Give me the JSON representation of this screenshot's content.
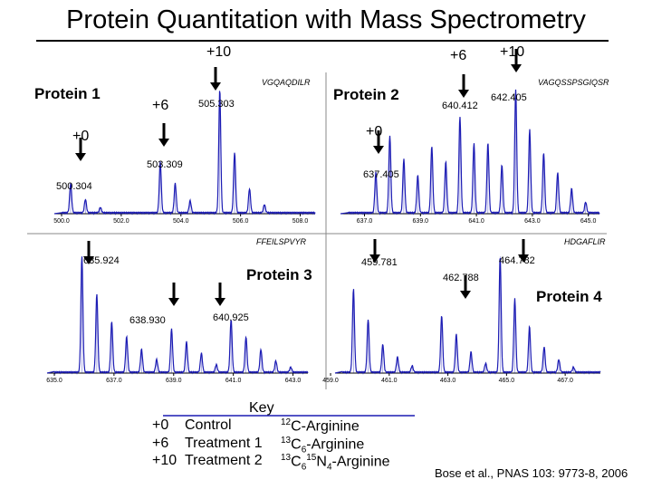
{
  "title": "Protein Quantitation with Mass Spectrometry",
  "citation": "Bose et al., PNAS 103: 9773-8, 2006",
  "colors": {
    "peak": "#1c1cb4",
    "axis": "#000000",
    "divider": "#888888"
  },
  "key": {
    "heading": "Key",
    "rows": [
      {
        "label": "+0",
        "treatment": "Control",
        "iso": "12",
        "residue": "C-Arginine"
      },
      {
        "label": "+6",
        "treatment": "Treatment 1",
        "iso": "13",
        "c": "C",
        "sub": "6",
        "residue": "-Arginine"
      },
      {
        "label": "+10",
        "treatment": "Treatment 2",
        "iso": "13",
        "c": "C",
        "sub": "6",
        "iso2": "15",
        "n": "N",
        "sub2": "4",
        "residue": "-Arginine"
      }
    ]
  },
  "chart_data": [
    {
      "type": "line",
      "protein": "Protein 1",
      "sequence": "VGQAQDILR",
      "xlim": [
        500.0,
        508.5
      ],
      "x_ticks": [
        "500.0",
        "502.0",
        "504.0",
        "506.0",
        "508.0"
      ],
      "tick_values": [
        500.0,
        502.0,
        504.0,
        506.0,
        508.0
      ],
      "peaks": [
        {
          "x": 500.304,
          "y": 0.22
        },
        {
          "x": 500.8,
          "y": 0.1
        },
        {
          "x": 501.3,
          "y": 0.04
        },
        {
          "x": 503.309,
          "y": 0.38
        },
        {
          "x": 503.81,
          "y": 0.22
        },
        {
          "x": 504.31,
          "y": 0.09
        },
        {
          "x": 505.303,
          "y": 0.92
        },
        {
          "x": 505.8,
          "y": 0.45
        },
        {
          "x": 506.3,
          "y": 0.18
        },
        {
          "x": 506.8,
          "y": 0.06
        }
      ],
      "annotations": [
        {
          "text": "500.304"
        },
        {
          "text": "503.309"
        },
        {
          "text": "505.303"
        }
      ],
      "markers": [
        {
          "text": "+0",
          "x": 500.304
        },
        {
          "text": "+6",
          "x": 503.309
        },
        {
          "text": "+10",
          "x": 505.303
        }
      ]
    },
    {
      "type": "line",
      "protein": "Protein 2",
      "sequence": "VAGQSSPSGIQSR",
      "xlim": [
        636.4,
        645.4
      ],
      "x_ticks": [
        "637.0",
        "639.0",
        "641.0",
        "643.0",
        "645.0"
      ],
      "tick_values": [
        637.0,
        639.0,
        641.0,
        643.0,
        645.0
      ],
      "peaks": [
        {
          "x": 637.405,
          "y": 0.3
        },
        {
          "x": 637.905,
          "y": 0.58
        },
        {
          "x": 638.405,
          "y": 0.4
        },
        {
          "x": 638.905,
          "y": 0.28
        },
        {
          "x": 639.405,
          "y": 0.5
        },
        {
          "x": 639.905,
          "y": 0.38
        },
        {
          "x": 640.412,
          "y": 0.72
        },
        {
          "x": 640.912,
          "y": 0.52
        },
        {
          "x": 641.412,
          "y": 0.52
        },
        {
          "x": 641.912,
          "y": 0.36
        },
        {
          "x": 642.405,
          "y": 0.92
        },
        {
          "x": 642.905,
          "y": 0.62
        },
        {
          "x": 643.405,
          "y": 0.45
        },
        {
          "x": 643.905,
          "y": 0.3
        },
        {
          "x": 644.405,
          "y": 0.18
        },
        {
          "x": 644.905,
          "y": 0.08
        }
      ],
      "annotations": [
        {
          "text": "637.405"
        },
        {
          "text": "640.412"
        },
        {
          "text": "642.405"
        }
      ],
      "markers": [
        {
          "text": "+0",
          "x": 637.405
        },
        {
          "text": "+6",
          "x": 640.412
        },
        {
          "text": "+10",
          "x": 642.405
        }
      ]
    },
    {
      "type": "line",
      "protein": "Protein 3",
      "sequence": "FFEILSPVYR",
      "xlim": [
        635.0,
        643.5
      ],
      "x_ticks": [
        "635.0",
        "637.0",
        "639.0",
        "641.0",
        "643.0"
      ],
      "tick_values": [
        635.0,
        637.0,
        639.0,
        641.0,
        643.0
      ],
      "peaks": [
        {
          "x": 635.924,
          "y": 0.92
        },
        {
          "x": 636.424,
          "y": 0.62
        },
        {
          "x": 636.924,
          "y": 0.4
        },
        {
          "x": 637.424,
          "y": 0.28
        },
        {
          "x": 637.924,
          "y": 0.18
        },
        {
          "x": 638.43,
          "y": 0.1
        },
        {
          "x": 638.93,
          "y": 0.34
        },
        {
          "x": 639.43,
          "y": 0.24
        },
        {
          "x": 639.93,
          "y": 0.15
        },
        {
          "x": 640.43,
          "y": 0.06
        },
        {
          "x": 640.925,
          "y": 0.42
        },
        {
          "x": 641.425,
          "y": 0.28
        },
        {
          "x": 641.925,
          "y": 0.18
        },
        {
          "x": 642.425,
          "y": 0.09
        },
        {
          "x": 642.925,
          "y": 0.04
        }
      ],
      "annotations": [
        {
          "text": "635.924"
        },
        {
          "text": "638.930"
        },
        {
          "text": "640.925"
        }
      ],
      "markers": [
        {
          "x": 635.924
        },
        {
          "x": 638.93
        },
        {
          "x": 640.925
        }
      ]
    },
    {
      "type": "line",
      "protein": "Protein 4",
      "sequence": "HDGAFLIR",
      "xlim": [
        459.4,
        468.2
      ],
      "x_ticks": [
        "459.0",
        "461.0",
        "463.0",
        "465.0",
        "467.0"
      ],
      "tick_values": [
        459.0,
        461.0,
        463.0,
        465.0,
        467.0
      ],
      "tick_positions_note": "",
      "peaks": [
        {
          "x": 459.781,
          "y": 0.66
        },
        {
          "x": 460.281,
          "y": 0.42
        },
        {
          "x": 460.781,
          "y": 0.22
        },
        {
          "x": 461.281,
          "y": 0.12
        },
        {
          "x": 461.781,
          "y": 0.05
        },
        {
          "x": 462.788,
          "y": 0.45
        },
        {
          "x": 463.288,
          "y": 0.3
        },
        {
          "x": 463.788,
          "y": 0.16
        },
        {
          "x": 464.288,
          "y": 0.07
        },
        {
          "x": 464.782,
          "y": 0.92
        },
        {
          "x": 465.282,
          "y": 0.58
        },
        {
          "x": 465.782,
          "y": 0.36
        },
        {
          "x": 466.282,
          "y": 0.2
        },
        {
          "x": 466.782,
          "y": 0.1
        },
        {
          "x": 467.282,
          "y": 0.04
        }
      ],
      "annotations": [
        {
          "text": "459.781"
        },
        {
          "text": "462.788"
        },
        {
          "text": "464.782"
        }
      ],
      "markers": [
        {
          "x": 459.781
        },
        {
          "x": 462.788
        },
        {
          "x": 464.782
        }
      ]
    }
  ]
}
